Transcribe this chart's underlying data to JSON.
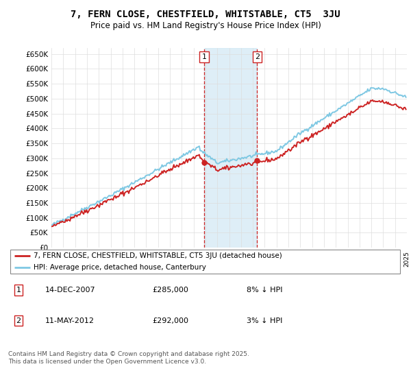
{
  "title": "7, FERN CLOSE, CHESTFIELD, WHITSTABLE, CT5  3JU",
  "subtitle": "Price paid vs. HM Land Registry's House Price Index (HPI)",
  "ylim": [
    0,
    670000
  ],
  "yticks": [
    0,
    50000,
    100000,
    150000,
    200000,
    250000,
    300000,
    350000,
    400000,
    450000,
    500000,
    550000,
    600000,
    650000
  ],
  "ytick_labels": [
    "£0",
    "£50K",
    "£100K",
    "£150K",
    "£200K",
    "£250K",
    "£300K",
    "£350K",
    "£400K",
    "£450K",
    "£500K",
    "£550K",
    "£600K",
    "£650K"
  ],
  "hpi_color": "#7ec8e3",
  "price_color": "#cc2222",
  "shade_color": "#d0e8f5",
  "legend_price": "7, FERN CLOSE, CHESTFIELD, WHITSTABLE, CT5 3JU (detached house)",
  "legend_hpi": "HPI: Average price, detached house, Canterbury",
  "note1_num": "1",
  "note1_date": "14-DEC-2007",
  "note1_price": "£285,000",
  "note1_hpi": "8% ↓ HPI",
  "note2_num": "2",
  "note2_date": "11-MAY-2012",
  "note2_price": "£292,000",
  "note2_hpi": "3% ↓ HPI",
  "footer": "Contains HM Land Registry data © Crown copyright and database right 2025.\nThis data is licensed under the Open Government Licence v3.0.",
  "background_color": "#ffffff",
  "grid_color": "#dddddd"
}
